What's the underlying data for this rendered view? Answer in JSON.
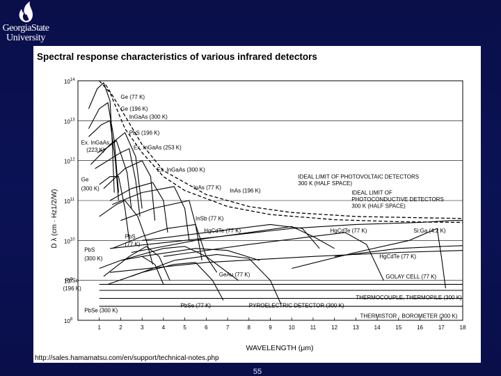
{
  "logo": {
    "line1": "GeorgiaState",
    "line2": "University"
  },
  "slide_number": "55",
  "source_url": "http://sales.hamamatsu.com/en/support/technical-notes.php",
  "chart_data": {
    "type": "line",
    "title": "Spectral response characteristics of various infrared detectors",
    "xlabel": "WAVELENGTH (μm)",
    "ylabel": "D λ (cm · Hz1/2/W)",
    "xlim": [
      0,
      18
    ],
    "ylim_exp": [
      8,
      14
    ],
    "y_scale": "log",
    "x_ticks": [
      "1",
      "2",
      "3",
      "4",
      "5",
      "6",
      "7",
      "8",
      "9",
      "10",
      "11",
      "12",
      "13",
      "14",
      "15",
      "16",
      "17",
      "18"
    ],
    "y_ticks": [
      {
        "base": "10",
        "exp": "14",
        "v": 14
      },
      {
        "base": "10",
        "exp": "13",
        "v": 13
      },
      {
        "base": "10",
        "exp": "12",
        "v": 12
      },
      {
        "base": "10",
        "exp": "11",
        "v": 11
      },
      {
        "base": "10",
        "exp": "10",
        "v": 10
      },
      {
        "base": "10",
        "exp": "9",
        "v": 9
      },
      {
        "base": "10",
        "exp": "8",
        "v": 8
      }
    ],
    "series": [
      {
        "dash": false,
        "points": [
          [
            0.5,
            13.3
          ],
          [
            0.9,
            13.8
          ],
          [
            1.2,
            13.95
          ],
          [
            1.5,
            13.5
          ],
          [
            1.6,
            12.5
          ],
          [
            1.7,
            11.2
          ]
        ]
      },
      {
        "dash": false,
        "points": [
          [
            0.5,
            12.8
          ],
          [
            1.0,
            13.3
          ],
          [
            1.4,
            13.45
          ],
          [
            1.7,
            12.5
          ],
          [
            1.9,
            11.2
          ]
        ]
      },
      {
        "dash": false,
        "points": [
          [
            0.5,
            12.6
          ],
          [
            1.1,
            12.9
          ],
          [
            1.5,
            13.0
          ],
          [
            1.75,
            12.0
          ],
          [
            1.9,
            11.0
          ]
        ]
      },
      {
        "dash": false,
        "points": [
          [
            0.6,
            11.9
          ],
          [
            1.5,
            12.4
          ],
          [
            2.2,
            12.7
          ],
          [
            2.7,
            12.1
          ],
          [
            3.0,
            10.8
          ]
        ]
      },
      {
        "dash": false,
        "points": [
          [
            0.9,
            12.2
          ],
          [
            1.3,
            12.3
          ],
          [
            1.8,
            12.5
          ],
          [
            2.3,
            11.7
          ],
          [
            2.5,
            10.8
          ]
        ]
      },
      {
        "dash": false,
        "points": [
          [
            0.8,
            11.8
          ],
          [
            2.0,
            12.2
          ],
          [
            2.4,
            12.3
          ],
          [
            2.7,
            11.5
          ],
          [
            2.9,
            10.6
          ]
        ]
      },
      {
        "dash": false,
        "points": [
          [
            1.0,
            11.4
          ],
          [
            1.5,
            11.6
          ],
          [
            1.9,
            11.6
          ],
          [
            2.2,
            10.8
          ],
          [
            2.4,
            10.0
          ]
        ]
      },
      {
        "dash": false,
        "points": [
          [
            1.2,
            11.3
          ],
          [
            2.2,
            11.8
          ],
          [
            3.0,
            12.0
          ],
          [
            3.4,
            11.6
          ],
          [
            3.6,
            10.5
          ]
        ]
      },
      {
        "dash": false,
        "points": [
          [
            1.5,
            11.0
          ],
          [
            2.5,
            11.3
          ],
          [
            3.5,
            11.45
          ],
          [
            4.0,
            11.0
          ],
          [
            4.2,
            10.2
          ]
        ]
      },
      {
        "dash": false,
        "points": [
          [
            1.6,
            10.9
          ],
          [
            3.0,
            11.2
          ],
          [
            4.5,
            11.35
          ],
          [
            5.0,
            10.8
          ],
          [
            5.2,
            10.0
          ]
        ]
      },
      {
        "dash": false,
        "points": [
          [
            2.0,
            10.5
          ],
          [
            3.5,
            10.8
          ],
          [
            5.2,
            11.0
          ],
          [
            5.5,
            10.4
          ],
          [
            5.8,
            9.5
          ]
        ]
      },
      {
        "dash": false,
        "points": [
          [
            1.0,
            10.6
          ],
          [
            1.8,
            10.9
          ],
          [
            2.2,
            11.0
          ],
          [
            2.8,
            10.6
          ],
          [
            3.2,
            10.0
          ],
          [
            3.5,
            9.4
          ]
        ]
      },
      {
        "dash": false,
        "points": [
          [
            1.6,
            9.8
          ],
          [
            3.0,
            10.1
          ],
          [
            4.2,
            10.3
          ],
          [
            5.5,
            10.4
          ],
          [
            6.0,
            9.6
          ],
          [
            6.5,
            9.2
          ]
        ]
      },
      {
        "dash": false,
        "points": [
          [
            1.0,
            9.3
          ],
          [
            2.0,
            9.5
          ],
          [
            3.0,
            9.6
          ],
          [
            3.6,
            9.4
          ],
          [
            4.0,
            8.9
          ]
        ]
      },
      {
        "dash": false,
        "points": [
          [
            1.2,
            9.1
          ],
          [
            2.4,
            9.6
          ],
          [
            3.2,
            9.85
          ],
          [
            3.8,
            9.6
          ],
          [
            4.3,
            9.0
          ]
        ]
      },
      {
        "dash": false,
        "points": [
          [
            1.4,
            8.9
          ],
          [
            3.0,
            9.2
          ],
          [
            4.5,
            9.4
          ],
          [
            5.5,
            9.45
          ],
          [
            6.3,
            9.0
          ],
          [
            6.8,
            8.5
          ]
        ]
      },
      {
        "dash": false,
        "points": [
          [
            2.5,
            9.1
          ],
          [
            4.5,
            9.5
          ],
          [
            6.5,
            9.65
          ],
          [
            8.0,
            9.55
          ],
          [
            9.0,
            9.0
          ],
          [
            9.5,
            8.4
          ]
        ]
      },
      {
        "dash": false,
        "points": [
          [
            2.0,
            9.5
          ],
          [
            4.0,
            9.8
          ],
          [
            5.0,
            9.85
          ],
          [
            6.0,
            9.6
          ],
          [
            7.5,
            9.0
          ]
        ]
      },
      {
        "dash": false,
        "points": [
          [
            3.0,
            9.6
          ],
          [
            5.5,
            9.8
          ],
          [
            7.0,
            9.75
          ],
          [
            8.5,
            9.5
          ]
        ]
      },
      {
        "dash": false,
        "points": [
          [
            2.5,
            9.7
          ],
          [
            6.0,
            10.05
          ],
          [
            8.0,
            10.2
          ],
          [
            10.0,
            10.35
          ],
          [
            11.0,
            10.1
          ],
          [
            12.0,
            9.8
          ]
        ]
      },
      {
        "dash": false,
        "points": [
          [
            3.0,
            10.0
          ],
          [
            6.0,
            10.2
          ],
          [
            9.0,
            10.4
          ],
          [
            10.5,
            10.3
          ],
          [
            11.3,
            9.8
          ]
        ]
      },
      {
        "dash": false,
        "points": [
          [
            4.0,
            9.6
          ],
          [
            8.0,
            9.9
          ],
          [
            11.0,
            10.1
          ],
          [
            12.5,
            10.2
          ],
          [
            13.5,
            9.9
          ],
          [
            14.3,
            9.0
          ]
        ]
      },
      {
        "dash": false,
        "points": [
          [
            10.0,
            9.3
          ],
          [
            13.0,
            9.7
          ],
          [
            15.5,
            10.0
          ],
          [
            16.8,
            10.3
          ],
          [
            17.0,
            9.6
          ],
          [
            17.2,
            8.8
          ]
        ]
      },
      {
        "dash": false,
        "points": [
          [
            1.5,
            9.8
          ],
          [
            5.0,
            10.0
          ],
          [
            10.0,
            10.3
          ],
          [
            13.0,
            10.4
          ],
          [
            16.0,
            10.45
          ],
          [
            17.5,
            10.5
          ],
          [
            18.0,
            10.5
          ]
        ]
      },
      {
        "dash": false,
        "points": [
          [
            12.0,
            9.6
          ],
          [
            15.0,
            9.8
          ],
          [
            17.0,
            9.85
          ],
          [
            18.0,
            9.87
          ]
        ]
      },
      {
        "dash": false,
        "points": [
          [
            1.5,
            9.2
          ],
          [
            6.0,
            9.45
          ],
          [
            11.0,
            9.6
          ],
          [
            15.0,
            9.7
          ],
          [
            18.0,
            9.75
          ]
        ]
      },
      {
        "dash": false,
        "points": [
          [
            1.0,
            8.9
          ],
          [
            18.0,
            8.9
          ]
        ]
      },
      {
        "dash": false,
        "points": [
          [
            1.0,
            8.75
          ],
          [
            18.0,
            8.75
          ]
        ]
      },
      {
        "dash": false,
        "points": [
          [
            1.0,
            8.55
          ],
          [
            18.0,
            8.55
          ]
        ]
      },
      {
        "dash": false,
        "points": [
          [
            1.0,
            8.35
          ],
          [
            18.0,
            8.35
          ]
        ]
      },
      {
        "dash": true,
        "points": [
          [
            1.0,
            14.0
          ],
          [
            1.5,
            13.7
          ],
          [
            2.2,
            12.8
          ],
          [
            3.0,
            12.2
          ],
          [
            4.0,
            11.6
          ],
          [
            5.0,
            11.25
          ],
          [
            7.0,
            10.85
          ],
          [
            9.0,
            10.65
          ],
          [
            12.0,
            10.52
          ],
          [
            15.0,
            10.47
          ],
          [
            18.0,
            10.45
          ]
        ]
      },
      {
        "dash": true,
        "points": [
          [
            1.3,
            13.9
          ],
          [
            2.0,
            13.3
          ],
          [
            3.0,
            12.4
          ],
          [
            4.0,
            11.75
          ],
          [
            6.0,
            11.15
          ],
          [
            8.0,
            10.85
          ],
          [
            10.0,
            10.7
          ],
          [
            13.0,
            10.6
          ],
          [
            16.0,
            10.57
          ],
          [
            18.0,
            10.55
          ]
        ]
      }
    ],
    "labels": [
      {
        "text": "Ge (77 K)",
        "x": 2.0,
        "y": 13.55
      },
      {
        "text": "Ge (196 K)",
        "x": 2.0,
        "y": 13.25
      },
      {
        "text": "InGaAs (300 K)",
        "x": 2.4,
        "y": 13.05
      },
      {
        "text": "PbS (196 K)",
        "x": 2.4,
        "y": 12.65
      },
      {
        "text": "Ex. InGaAs",
        "x": 0.15,
        "y": 12.4
      },
      {
        "text": "(223 K)",
        "x": 0.4,
        "y": 12.22
      },
      {
        "text": "Ex. InGaAs (253 K)",
        "x": 2.6,
        "y": 12.28
      },
      {
        "text": "Ex. InGaAs (300 K)",
        "x": 3.7,
        "y": 11.72
      },
      {
        "text": "Ge",
        "x": 0.15,
        "y": 11.48
      },
      {
        "text": "(300 K)",
        "x": 0.15,
        "y": 11.25
      },
      {
        "text": "InAs (77 K)",
        "x": 5.4,
        "y": 11.28
      },
      {
        "text": "InAs (196 K)",
        "x": 7.1,
        "y": 11.2
      },
      {
        "text": "InSb (77 K)",
        "x": 5.5,
        "y": 10.5
      },
      {
        "text": "HgCdTe (77 K)",
        "x": 5.9,
        "y": 10.2
      },
      {
        "text": "IDEAL LIMIT OF PHOTOVOLTAIC DETECTORS",
        "x": 10.3,
        "y": 11.55
      },
      {
        "text": "300 K (HALF SPACE)",
        "x": 10.3,
        "y": 11.38
      },
      {
        "text": "IDEAL LIMIT OF",
        "x": 12.8,
        "y": 11.15
      },
      {
        "text": "PHOTOCONDUCTIVE DETECTORS",
        "x": 12.8,
        "y": 10.98
      },
      {
        "text": "300 K (HALF SPACE)",
        "x": 12.8,
        "y": 10.82
      },
      {
        "text": "HgCdTe (77 K)",
        "x": 11.8,
        "y": 10.2
      },
      {
        "text": "Si:Ga (4.2 K)",
        "x": 15.7,
        "y": 10.2
      },
      {
        "text": "PbS",
        "x": 2.2,
        "y": 10.05
      },
      {
        "text": "(77 K)",
        "x": 2.2,
        "y": 9.86
      },
      {
        "text": "PbS",
        "x": 0.3,
        "y": 9.72
      },
      {
        "text": "(300 K)",
        "x": 0.3,
        "y": 9.5
      },
      {
        "text": "HgCdTe (77 K)",
        "x": 14.1,
        "y": 9.55
      },
      {
        "text": "GeAu (77 K)",
        "x": 6.6,
        "y": 9.1
      },
      {
        "text": "GOLAY CELL (77 K)",
        "x": 14.4,
        "y": 9.05
      },
      {
        "text": "PbSe",
        "x": -0.6,
        "y": 8.95
      },
      {
        "text": "(196 K)",
        "x": -0.7,
        "y": 8.75
      },
      {
        "text": "PbSe (77 K)",
        "x": 4.8,
        "y": 8.32
      },
      {
        "text": "PYROELECTRIC DETECTOR (300 K)",
        "x": 8.0,
        "y": 8.32
      },
      {
        "text": "THERMOCOUPLE, THERMOPILE (300 K)",
        "x": 13.0,
        "y": 8.52
      },
      {
        "text": "PbSe (300 K)",
        "x": 0.3,
        "y": 8.2
      },
      {
        "text": "THERMISTOR · BOROMETER (300 K)",
        "x": 13.2,
        "y": 8.06
      }
    ]
  }
}
